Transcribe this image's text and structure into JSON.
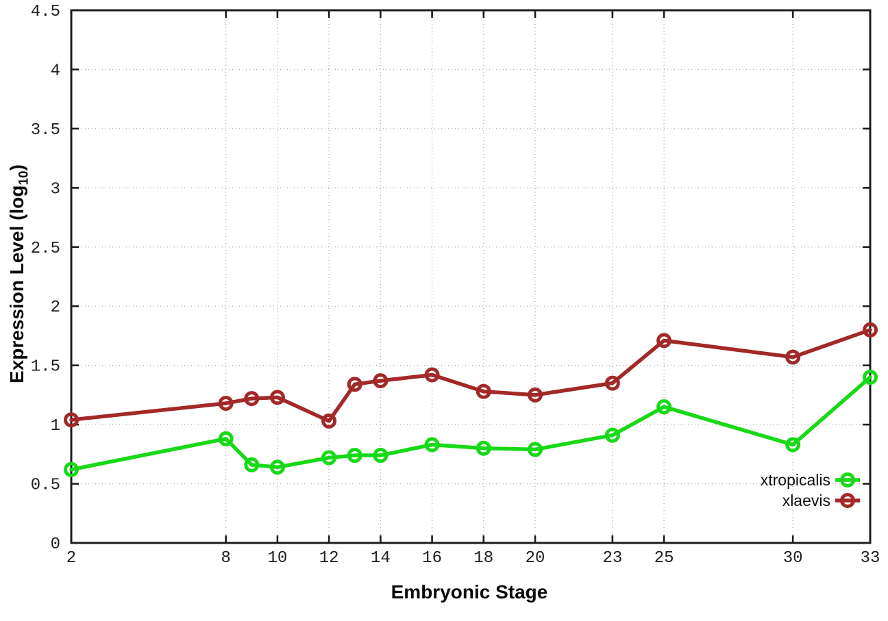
{
  "chart_data": {
    "type": "line",
    "title": "",
    "xlabel": "Embryonic Stage",
    "ylabel": "Expression Level (log10)",
    "ylabel_parts": {
      "prefix": "Expression Level (log",
      "sub": "10",
      "suffix": ")"
    },
    "xlim": [
      2,
      33
    ],
    "ylim": [
      0,
      4.5
    ],
    "xticks": [
      2,
      8,
      10,
      12,
      14,
      16,
      18,
      20,
      23,
      25,
      30,
      33
    ],
    "xtick_labels": [
      "2",
      "8",
      "10",
      "12",
      "14",
      "16",
      "18",
      "20",
      "23",
      "25",
      "30",
      "33"
    ],
    "yticks": [
      0,
      0.5,
      1,
      1.5,
      2,
      2.5,
      3,
      3.5,
      4,
      4.5
    ],
    "ytick_labels": [
      "0",
      "0.5",
      "1",
      "1.5",
      "2",
      "2.5",
      "3",
      "3.5",
      "4",
      "4.5"
    ],
    "grid": true,
    "legend": {
      "position": "inside-bottom-right",
      "order": [
        "xtropicalis",
        "xlaevis"
      ]
    },
    "x": [
      2,
      8,
      9,
      10,
      12,
      13,
      14,
      16,
      18,
      20,
      23,
      25,
      30,
      33
    ],
    "series": [
      {
        "name": "xtropicalis",
        "color": "#17d917",
        "values": [
          0.62,
          0.88,
          0.66,
          0.64,
          0.72,
          0.74,
          0.74,
          0.83,
          0.8,
          0.79,
          0.91,
          1.15,
          0.83,
          1.4
        ]
      },
      {
        "name": "xlaevis",
        "color": "#a32828",
        "values": [
          1.04,
          1.18,
          1.22,
          1.23,
          1.03,
          1.34,
          1.37,
          1.42,
          1.28,
          1.25,
          1.35,
          1.71,
          1.57,
          1.8
        ]
      }
    ]
  },
  "colors": {
    "background": "#ffffff",
    "axis": "#1c1c1c",
    "gridline": "#a9a9a9",
    "tick_label": "#1e1e1e"
  }
}
